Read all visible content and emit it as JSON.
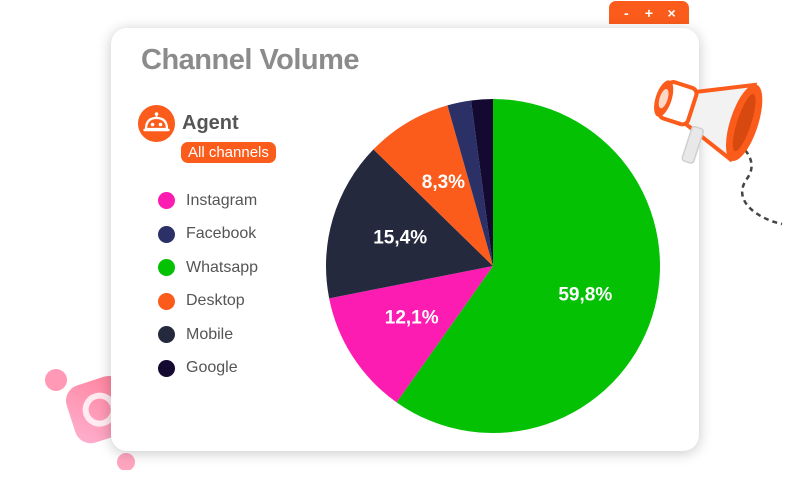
{
  "window_controls": {
    "minimize": "-",
    "maximize": "+",
    "close": "×"
  },
  "card": {
    "title": "Channel Volume",
    "agent": {
      "name": "Agent",
      "badge": "All channels",
      "icon": "robot-icon"
    }
  },
  "decorations": {
    "left": "instagram-logo-icon",
    "right": "megaphone-icon"
  },
  "colors": {
    "accent": "#fb5c1c",
    "Instagram": "#fc1cb2",
    "Facebook": "#2b3066",
    "Whatsapp": "#04c104",
    "Desktop": "#fb5c1c",
    "Mobile": "#24293e",
    "Google": "#140a31"
  },
  "legend": [
    {
      "label": "Instagram",
      "color": "#fc1cb2"
    },
    {
      "label": "Facebook",
      "color": "#2b3066"
    },
    {
      "label": "Whatsapp",
      "color": "#04c104"
    },
    {
      "label": "Desktop",
      "color": "#fb5c1c"
    },
    {
      "label": "Mobile",
      "color": "#24293e"
    },
    {
      "label": "Google",
      "color": "#140a31"
    }
  ],
  "chart_data": {
    "type": "pie",
    "title": "Channel Volume",
    "unit": "%",
    "slices": [
      {
        "name": "Whatsapp",
        "value": 59.8,
        "label": "59,8%",
        "color": "#04c104"
      },
      {
        "name": "Instagram",
        "value": 12.1,
        "label": "12,1%",
        "color": "#fc1cb2"
      },
      {
        "name": "Mobile",
        "value": 15.4,
        "label": "15,4%",
        "color": "#24293e"
      },
      {
        "name": "Desktop",
        "value": 8.3,
        "label": "8,3%",
        "color": "#fb5c1c"
      },
      {
        "name": "Facebook",
        "value": 2.3,
        "label": "",
        "color": "#2b3066"
      },
      {
        "name": "Google",
        "value": 2.1,
        "label": "",
        "color": "#140a31"
      }
    ],
    "legend_position": "left"
  }
}
